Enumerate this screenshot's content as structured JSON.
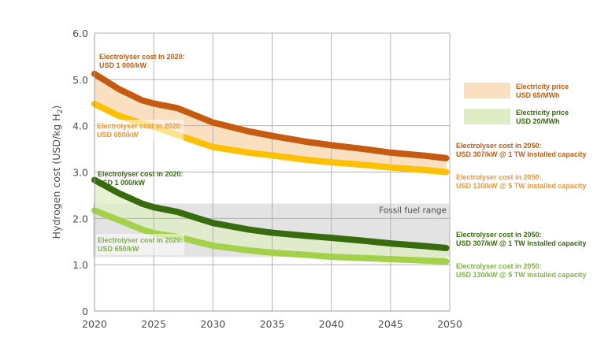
{
  "chart_data": {
    "type": "line",
    "title": "",
    "xlabel": "",
    "ylabel": "Hydrogen cost (USD/kg H",
    "ylabel_sub": "2",
    "ylabel_close": ")",
    "xlim": [
      2020,
      2050
    ],
    "ylim": [
      0,
      6
    ],
    "grid": true,
    "x_ticks": [
      2020,
      2025,
      2030,
      2035,
      2040,
      2045,
      2050
    ],
    "y_ticks": [
      "0",
      "1.0",
      "2.0",
      "3.0",
      "4.0",
      "5.0",
      "6.0"
    ],
    "y_tick_values": [
      0,
      1,
      2,
      3,
      4,
      5,
      6
    ],
    "x": [
      2020,
      2022,
      2024,
      2025,
      2027,
      2030,
      2033,
      2035,
      2038,
      2040,
      2043,
      2045,
      2048,
      2049.7
    ],
    "series": [
      {
        "name": "Electricity USD 65/MWh - Electrolyser USD 1000/kW to 307/kW",
        "color": "#c55a11",
        "values": [
          5.12,
          4.8,
          4.55,
          4.48,
          4.38,
          4.07,
          3.88,
          3.78,
          3.65,
          3.58,
          3.49,
          3.42,
          3.35,
          3.3
        ]
      },
      {
        "name": "Electricity USD 65/MWh - Electrolyser USD 650/kW to 130/kW",
        "color": "#ffc000",
        "values": [
          4.47,
          4.22,
          4.05,
          3.98,
          3.8,
          3.54,
          3.42,
          3.36,
          3.26,
          3.21,
          3.15,
          3.1,
          3.04,
          3.0
        ]
      },
      {
        "name": "Electricity USD 20/MWh - Electrolyser USD 1000/kW to 307/kW",
        "color": "#376b0e",
        "values": [
          2.83,
          2.55,
          2.32,
          2.24,
          2.14,
          1.9,
          1.76,
          1.69,
          1.62,
          1.58,
          1.51,
          1.46,
          1.4,
          1.36
        ]
      },
      {
        "name": "Electricity USD 20/MWh - Electrolyser USD 650/kW to 130/kW",
        "color": "#a4d04a",
        "values": [
          2.17,
          1.97,
          1.76,
          1.68,
          1.6,
          1.41,
          1.31,
          1.26,
          1.21,
          1.17,
          1.14,
          1.12,
          1.09,
          1.07
        ]
      }
    ],
    "bands": [
      {
        "name": "Electricity price USD 65/MWh",
        "between": [
          0,
          1
        ],
        "color": "#fbdfc1"
      },
      {
        "name": "Electricity price USD 20/MWh",
        "between": [
          2,
          3
        ],
        "color": "#dfedc4"
      }
    ],
    "fossil_range": {
      "label": "Fossil fuel range",
      "low": 1.17,
      "high": 2.32,
      "color": "#e3e3e3"
    },
    "legend": {
      "placement": "right",
      "items": [
        {
          "line1": "Electricity price",
          "line2": "USD 65/MWh",
          "swatch": "#fbdfc1",
          "text_color": "#c55a11"
        },
        {
          "line1": "Electricity price",
          "line2": "USD 20/MWh",
          "swatch": "#dfedc4",
          "text_color": "#376b0e"
        }
      ]
    },
    "annotations": {
      "start": [
        {
          "line1": "Electrolyser cost in 2020:",
          "line2": "USD 1 000/kW",
          "color": "#c55a11"
        },
        {
          "line1": "Electrolyser cost in 2020:",
          "line2": "USD 650/kW",
          "color": "#f0943a"
        },
        {
          "line1": "Electrolyser cost in 2020:",
          "line2": "USD 1 000/kW",
          "color": "#376b0e"
        },
        {
          "line1": "Electrolyser cost in 2020:",
          "line2": "USD 650/kW",
          "color": "#7cb342"
        }
      ],
      "end": [
        {
          "line1": "Electrolyser cost in 2050:",
          "line2": "USD 307/kW @ 1 TW Installed capacity",
          "color": "#c55a11"
        },
        {
          "line1": "Electrolyser cost in 2050:",
          "line2": "USD 130/kW @ 5 TW installed capacity",
          "color": "#f0943a"
        },
        {
          "line1": "Electrolyser cost in 2050:",
          "line2": "USD 307/kW @ 1 TW Installed capacity",
          "color": "#376b0e"
        },
        {
          "line1": "Electrolyser cost in 2050:",
          "line2": "USD 130/kW @ 5 TW installed capacity",
          "color": "#7cb342"
        }
      ]
    }
  }
}
